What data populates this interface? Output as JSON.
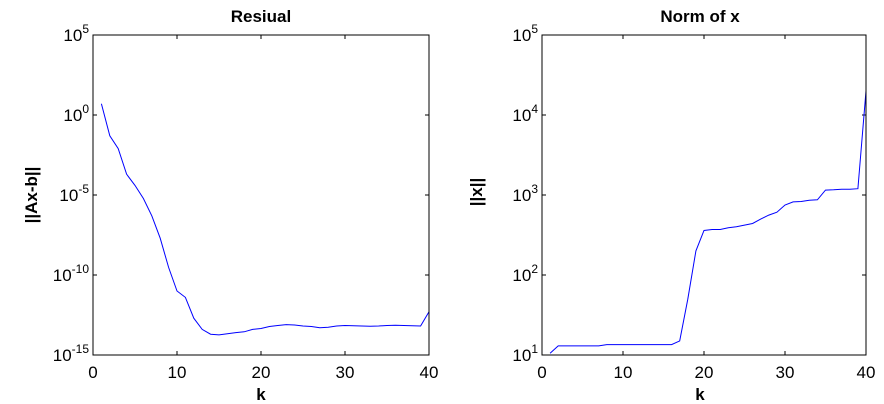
{
  "chart_data": [
    {
      "type": "line",
      "title": "Resiual",
      "xlabel": "k",
      "ylabel": "||Ax-b||",
      "yscale": "log",
      "xlim": [
        0,
        40
      ],
      "ylim": [
        1e-15,
        100000.0
      ],
      "x_ticks": [
        "0",
        "10",
        "20",
        "30",
        "40"
      ],
      "y_ticks": [
        {
          "base": "10",
          "exp": "5"
        },
        {
          "base": "10",
          "exp": "0"
        },
        {
          "base": "10",
          "exp": "-5"
        },
        {
          "base": "10",
          "exp": "-10"
        },
        {
          "base": "10",
          "exp": "-15"
        }
      ],
      "color": "#0000ff",
      "x": [
        1,
        2,
        3,
        4,
        5,
        6,
        7,
        8,
        9,
        10,
        11,
        12,
        13,
        14,
        15,
        16,
        17,
        18,
        19,
        20,
        21,
        22,
        23,
        24,
        25,
        26,
        27,
        28,
        29,
        30,
        31,
        32,
        33,
        34,
        35,
        36,
        37,
        38,
        39,
        40
      ],
      "y": [
        5,
        0.05,
        0.008,
        0.0002,
        4e-05,
        6e-06,
        5e-07,
        2e-08,
        3e-10,
        1e-11,
        4e-12,
        2e-13,
        4e-14,
        2e-14,
        1.8e-14,
        2.1e-14,
        2.5e-14,
        2.8e-14,
        4e-14,
        4.5e-14,
        6e-14,
        7e-14,
        8e-14,
        7.5e-14,
        6.5e-14,
        6e-14,
        5e-14,
        5.5e-14,
        6.5e-14,
        7e-14,
        6.8e-14,
        6.5e-14,
        6.2e-14,
        6.5e-14,
        7e-14,
        7.2e-14,
        7e-14,
        6.8e-14,
        6.5e-14,
        5e-13
      ]
    },
    {
      "type": "line",
      "title": "Norm of x",
      "xlabel": "k",
      "ylabel": "||x||",
      "yscale": "log",
      "xlim": [
        0,
        40
      ],
      "ylim": [
        10,
        100000.0
      ],
      "x_ticks": [
        "0",
        "10",
        "20",
        "30",
        "40"
      ],
      "y_ticks": [
        {
          "base": "10",
          "exp": "5"
        },
        {
          "base": "10",
          "exp": "4"
        },
        {
          "base": "10",
          "exp": "3"
        },
        {
          "base": "10",
          "exp": "2"
        },
        {
          "base": "10",
          "exp": "1"
        }
      ],
      "color": "#0000ff",
      "x": [
        1,
        2,
        3,
        4,
        5,
        6,
        7,
        8,
        9,
        10,
        11,
        12,
        13,
        14,
        15,
        16,
        17,
        18,
        19,
        20,
        21,
        22,
        23,
        24,
        25,
        26,
        27,
        28,
        29,
        30,
        31,
        32,
        33,
        34,
        35,
        36,
        37,
        38,
        39,
        40
      ],
      "y": [
        10.5,
        13,
        13,
        13,
        13,
        13,
        13,
        13.5,
        13.5,
        13.5,
        13.5,
        13.5,
        13.5,
        13.5,
        13.5,
        13.5,
        15,
        50,
        200,
        360,
        370,
        370,
        390,
        400,
        420,
        440,
        500,
        560,
        610,
        750,
        820,
        830,
        860,
        870,
        1150,
        1160,
        1180,
        1180,
        1200,
        20000
      ]
    }
  ]
}
